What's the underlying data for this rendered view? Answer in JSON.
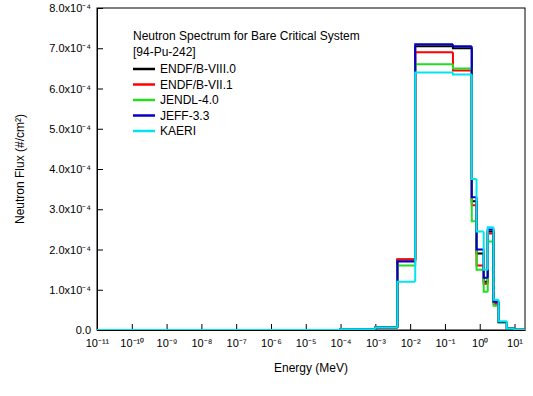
{
  "chart_data": {
    "type": "histogram",
    "title": "Neutron Spectrum for Bare Critical System",
    "subtitle": "[94-Pu-242]",
    "x_label": "Energy (MeV)",
    "y_label": "Neutron Flux (#/cm²)",
    "log": "x",
    "grid": false,
    "legend": "upper left",
    "bins": [
      1e-11,
      0.0001,
      0.001,
      0.0043,
      0.014,
      0.17,
      0.59,
      0.81,
      1.3,
      1.7,
      2.5,
      3.5,
      6,
      10,
      20
    ],
    "series": [
      {
        "name": "ENDF/B-VIII.0",
        "color": "#000000",
        "values": [
          0,
          2e-06,
          6e-06,
          0.000175,
          0.000705,
          0.0007,
          0.00032,
          0.00019,
          0.00012,
          0.000245,
          7e-05,
          2e-05,
          4e-06,
          5e-07
        ]
      },
      {
        "name": "ENDF/B-VII.1",
        "color": "#ff0000",
        "values": [
          0,
          2e-06,
          6e-06,
          0.000175,
          0.00069,
          0.000645,
          0.00031,
          0.00016,
          0.000115,
          0.00024,
          6.5e-05,
          2e-05,
          4e-06,
          5e-07
        ]
      },
      {
        "name": "JENDL-4.0",
        "color": "#22dd22",
        "values": [
          0,
          2e-06,
          6e-06,
          0.00016,
          0.00066,
          0.00065,
          0.00027,
          0.00015,
          9.5e-05,
          0.00022,
          6e-05,
          1.8e-05,
          4e-06,
          5e-07
        ]
      },
      {
        "name": "JEFF-3.3",
        "color": "#0000cc",
        "values": [
          0,
          2e-06,
          6e-06,
          0.00017,
          0.00071,
          0.000705,
          0.00033,
          0.0002,
          0.00013,
          0.00025,
          7e-05,
          2e-05,
          4e-06,
          5e-07
        ]
      },
      {
        "name": "KAERI",
        "color": "#00e5ee",
        "values": [
          0,
          2e-06,
          6e-06,
          0.00012,
          0.00064,
          0.000635,
          0.000375,
          0.000245,
          0.00015,
          0.000255,
          7.5e-05,
          2.2e-05,
          4e-06,
          5e-07
        ]
      }
    ],
    "xlim": [
      1e-11,
      20
    ],
    "xticks": [
      {
        "value": 1e-11,
        "label": "10⁻¹¹"
      },
      {
        "value": 1e-10,
        "label": "10⁻¹⁰"
      },
      {
        "value": 1e-09,
        "label": "10⁻⁹"
      },
      {
        "value": 1e-08,
        "label": "10⁻⁸"
      },
      {
        "value": 1e-07,
        "label": "10⁻⁷"
      },
      {
        "value": 1e-06,
        "label": "10⁻⁶"
      },
      {
        "value": 1e-05,
        "label": "10⁻⁵"
      },
      {
        "value": 0.0001,
        "label": "10⁻⁴"
      },
      {
        "value": 0.001,
        "label": "10⁻³"
      },
      {
        "value": 0.01,
        "label": "10⁻²"
      },
      {
        "value": 0.1,
        "label": "10⁻¹"
      },
      {
        "value": 1,
        "label": "10⁰"
      },
      {
        "value": 10,
        "label": "10¹"
      }
    ],
    "ylim": [
      0,
      0.0008
    ],
    "yticks": [
      {
        "value": 0,
        "label": "0.0"
      },
      {
        "value": 0.0001,
        "label": "1.0x10⁻⁴"
      },
      {
        "value": 0.0002,
        "label": "2.0x10⁻⁴"
      },
      {
        "value": 0.0003,
        "label": "3.0x10⁻⁴"
      },
      {
        "value": 0.0004,
        "label": "4.0x10⁻⁴"
      },
      {
        "value": 0.0005,
        "label": "5.0x10⁻⁴"
      },
      {
        "value": 0.0006,
        "label": "6.0x10⁻⁴"
      },
      {
        "value": 0.0007,
        "label": "7.0x10⁻⁴"
      },
      {
        "value": 0.0008,
        "label": "8.0x10⁻⁴"
      }
    ]
  }
}
